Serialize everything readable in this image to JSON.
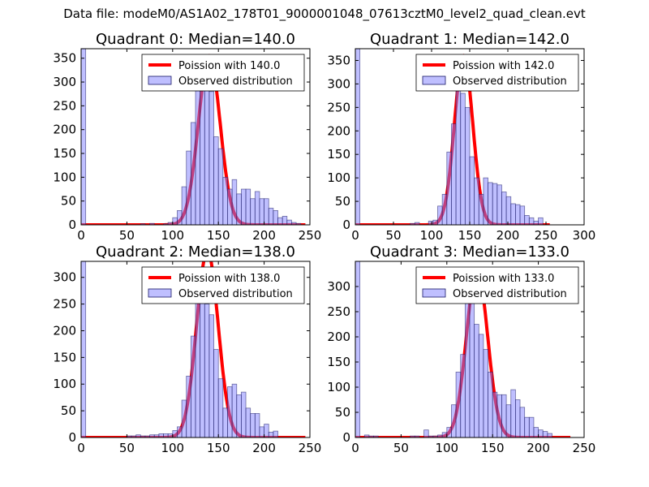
{
  "suptitle": "Data file: modeM0/AS1A02_178T01_9000001048_07613cztM0_level2_quad_clean.evt",
  "colors": {
    "bar": "#7f7fff",
    "bar_edge": "#1a1a66",
    "curve": "#ff0000"
  },
  "chart_data": [
    {
      "type": "bar",
      "title": "Quadrant 0: Median=140.0",
      "xlim": [
        0,
        250
      ],
      "ylim": [
        0,
        370
      ],
      "xticks": [
        0,
        50,
        100,
        150,
        200,
        250
      ],
      "yticks": [
        0,
        50,
        100,
        150,
        200,
        250,
        300,
        350
      ],
      "bin_width": 5,
      "bins": [
        [
          0,
          400
        ],
        [
          65,
          2
        ],
        [
          75,
          3
        ],
        [
          90,
          2
        ],
        [
          95,
          5
        ],
        [
          100,
          15
        ],
        [
          105,
          30
        ],
        [
          110,
          80
        ],
        [
          115,
          155
        ],
        [
          120,
          215
        ],
        [
          125,
          350
        ],
        [
          130,
          290
        ],
        [
          135,
          335
        ],
        [
          140,
          280
        ],
        [
          145,
          185
        ],
        [
          150,
          160
        ],
        [
          155,
          100
        ],
        [
          160,
          75
        ],
        [
          165,
          95
        ],
        [
          170,
          65
        ],
        [
          175,
          75
        ],
        [
          180,
          75
        ],
        [
          185,
          55
        ],
        [
          190,
          70
        ],
        [
          195,
          55
        ],
        [
          200,
          55
        ],
        [
          205,
          35
        ],
        [
          210,
          30
        ],
        [
          215,
          15
        ],
        [
          220,
          18
        ],
        [
          225,
          10
        ],
        [
          230,
          5
        ],
        [
          235,
          3
        ]
      ],
      "curve": {
        "mean": 140.0,
        "peak": 355,
        "xrange": [
          0,
          245
        ]
      },
      "legend": {
        "curve_label": "Poission with 140.0",
        "bar_label": "Observed distribution",
        "placement": "top-right"
      }
    },
    {
      "type": "bar",
      "title": "Quadrant 1: Median=142.0",
      "xlim": [
        0,
        300
      ],
      "ylim": [
        0,
        375
      ],
      "xticks": [
        0,
        50,
        100,
        150,
        200,
        250,
        300
      ],
      "yticks": [
        0,
        50,
        100,
        150,
        200,
        250,
        300,
        350
      ],
      "bin_width": 6,
      "bins": [
        [
          0,
          400
        ],
        [
          72,
          3
        ],
        [
          78,
          5
        ],
        [
          96,
          8
        ],
        [
          102,
          10
        ],
        [
          108,
          40
        ],
        [
          114,
          65
        ],
        [
          120,
          155
        ],
        [
          126,
          215
        ],
        [
          132,
          360
        ],
        [
          138,
          280
        ],
        [
          144,
          250
        ],
        [
          150,
          145
        ],
        [
          156,
          100
        ],
        [
          162,
          65
        ],
        [
          168,
          100
        ],
        [
          174,
          90
        ],
        [
          180,
          88
        ],
        [
          186,
          85
        ],
        [
          192,
          70
        ],
        [
          198,
          60
        ],
        [
          204,
          45
        ],
        [
          210,
          43
        ],
        [
          216,
          40
        ],
        [
          222,
          20
        ],
        [
          228,
          15
        ],
        [
          234,
          8
        ],
        [
          240,
          15
        ]
      ],
      "curve": {
        "mean": 142.0,
        "peak": 360,
        "xrange": [
          0,
          255
        ]
      },
      "legend": {
        "curve_label": "Poission with 142.0",
        "bar_label": "Observed distribution",
        "placement": "top-right"
      }
    },
    {
      "type": "bar",
      "title": "Quadrant 2: Median=138.0",
      "xlim": [
        0,
        250
      ],
      "ylim": [
        0,
        330
      ],
      "xticks": [
        0,
        50,
        100,
        150,
        200,
        250
      ],
      "yticks": [
        0,
        50,
        100,
        150,
        200,
        250,
        300
      ],
      "bin_width": 5,
      "bins": [
        [
          0,
          360
        ],
        [
          50,
          3
        ],
        [
          55,
          3
        ],
        [
          60,
          5
        ],
        [
          65,
          3
        ],
        [
          70,
          3
        ],
        [
          75,
          5
        ],
        [
          80,
          5
        ],
        [
          85,
          7
        ],
        [
          90,
          7
        ],
        [
          95,
          7
        ],
        [
          100,
          13
        ],
        [
          105,
          20
        ],
        [
          110,
          70
        ],
        [
          115,
          115
        ],
        [
          120,
          190
        ],
        [
          125,
          310
        ],
        [
          130,
          310
        ],
        [
          135,
          250
        ],
        [
          140,
          230
        ],
        [
          145,
          165
        ],
        [
          150,
          110
        ],
        [
          155,
          55
        ],
        [
          160,
          95
        ],
        [
          165,
          100
        ],
        [
          170,
          80
        ],
        [
          175,
          85
        ],
        [
          180,
          55
        ],
        [
          185,
          45
        ],
        [
          190,
          45
        ],
        [
          195,
          20
        ],
        [
          200,
          25
        ],
        [
          205,
          10
        ],
        [
          210,
          12
        ]
      ],
      "curve": {
        "mean": 138.0,
        "peak": 350,
        "xrange": [
          0,
          245
        ]
      },
      "legend": {
        "curve_label": "Poission with 138.0",
        "bar_label": "Observed distribution",
        "placement": "top-right"
      }
    },
    {
      "type": "bar",
      "title": "Quadrant 3: Median=133.0",
      "xlim": [
        0,
        250
      ],
      "ylim": [
        0,
        350
      ],
      "xticks": [
        0,
        50,
        100,
        150,
        200,
        250
      ],
      "yticks": [
        0,
        50,
        100,
        150,
        200,
        250,
        300
      ],
      "bin_width": 5,
      "bins": [
        [
          0,
          380
        ],
        [
          10,
          5
        ],
        [
          15,
          3
        ],
        [
          20,
          3
        ],
        [
          60,
          3
        ],
        [
          65,
          3
        ],
        [
          75,
          15
        ],
        [
          80,
          3
        ],
        [
          85,
          3
        ],
        [
          90,
          5
        ],
        [
          95,
          10
        ],
        [
          100,
          20
        ],
        [
          105,
          65
        ],
        [
          110,
          130
        ],
        [
          115,
          165
        ],
        [
          120,
          300
        ],
        [
          125,
          310
        ],
        [
          130,
          225
        ],
        [
          135,
          205
        ],
        [
          140,
          175
        ],
        [
          145,
          130
        ],
        [
          150,
          90
        ],
        [
          155,
          85
        ],
        [
          160,
          85
        ],
        [
          165,
          65
        ],
        [
          170,
          95
        ],
        [
          175,
          75
        ],
        [
          180,
          60
        ],
        [
          185,
          40
        ],
        [
          190,
          40
        ],
        [
          195,
          20
        ],
        [
          200,
          15
        ],
        [
          205,
          12
        ],
        [
          210,
          8
        ]
      ],
      "curve": {
        "mean": 133.0,
        "peak": 335,
        "xrange": [
          0,
          235
        ]
      },
      "legend": {
        "curve_label": "Poission with 133.0",
        "bar_label": "Observed distribution",
        "placement": "top-right"
      }
    }
  ]
}
